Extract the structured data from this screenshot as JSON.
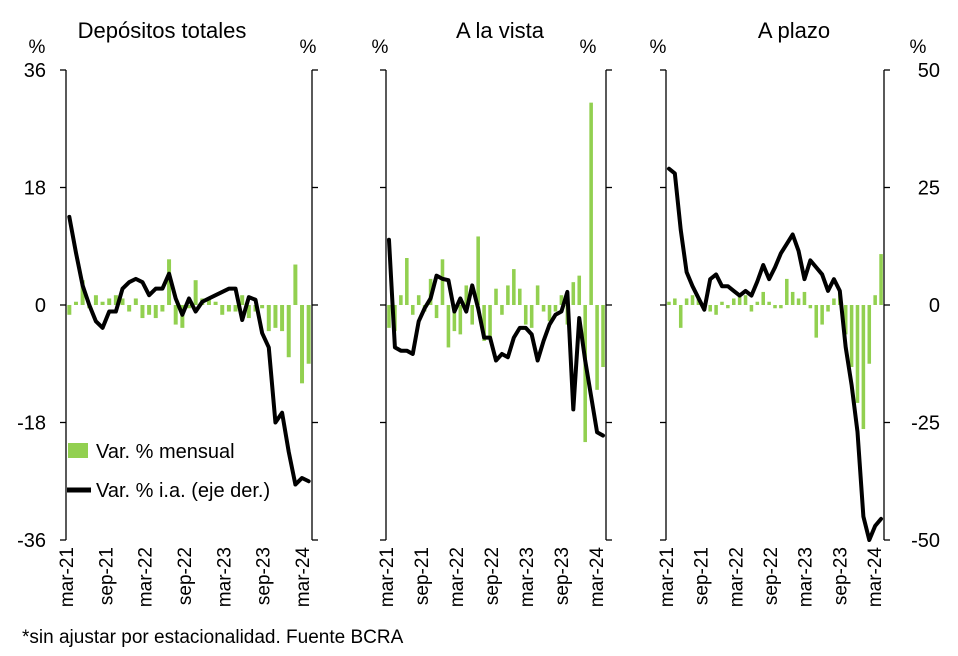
{
  "footnote": "*sin ajustar por estacionalidad. Fuente BCRA",
  "colors": {
    "bar": "#92D050",
    "line": "#000000",
    "axis": "#000000"
  },
  "legend": {
    "bar_label": "Var. % mensual",
    "line_label": "Var. % i.a. (eje der.)"
  },
  "x_tick_labels": [
    "mar-21",
    "sep-21",
    "mar-22",
    "sep-22",
    "mar-23",
    "sep-23",
    "mar-24"
  ],
  "chart_data": [
    {
      "type": "bar+line",
      "title": "Depósitos totales",
      "left_unit": "%",
      "right_unit": "%",
      "left_axis": {
        "range": [
          -36,
          36
        ],
        "ticks": [
          "36",
          "18",
          "0",
          "-18",
          "-36"
        ],
        "tick_values": [
          36,
          18,
          0,
          -18,
          -36
        ]
      },
      "right_axis": {
        "range": [
          -36,
          36
        ],
        "ticks": [],
        "tick_values": []
      },
      "x": [
        "mar-21",
        "abr-21",
        "may-21",
        "jun-21",
        "jul-21",
        "ago-21",
        "sep-21",
        "oct-21",
        "nov-21",
        "dic-21",
        "ene-22",
        "feb-22",
        "mar-22",
        "abr-22",
        "may-22",
        "jun-22",
        "jul-22",
        "ago-22",
        "sep-22",
        "oct-22",
        "nov-22",
        "dic-22",
        "ene-23",
        "feb-23",
        "mar-23",
        "abr-23",
        "may-23",
        "jun-23",
        "jul-23",
        "ago-23",
        "sep-23",
        "oct-23",
        "nov-23",
        "dic-23",
        "ene-24",
        "feb-24",
        "mar-24"
      ],
      "series": [
        {
          "name": "Var. % mensual",
          "kind": "bar",
          "axis": "left",
          "values": [
            -1.5,
            0.5,
            3.8,
            -0.5,
            1.5,
            0.5,
            1,
            1.5,
            1,
            -1,
            1,
            -2,
            -1.5,
            -2,
            -1,
            7,
            -3,
            -3.5,
            -0.5,
            3.8,
            1,
            1,
            0.5,
            -1.5,
            -1,
            -1,
            1.5,
            -2,
            -1,
            -0.5,
            -4,
            -3.5,
            -4,
            -8,
            6.2,
            -12,
            -9
          ]
        },
        {
          "name": "Var. % i.a. (eje der.)",
          "kind": "line",
          "axis": "right",
          "values": [
            13.5,
            8,
            3,
            0,
            -2.5,
            -3.5,
            -1,
            -1,
            2.5,
            3.5,
            4,
            3.5,
            1.5,
            2.5,
            2.5,
            4.8,
            1,
            -1.5,
            1,
            -1,
            0.5,
            1,
            1.5,
            2,
            2.5,
            2.5,
            -2.3,
            1.2,
            0.8,
            -4.3,
            -6.5,
            -18,
            -16.5,
            -22.5,
            -27.5,
            -26.5,
            -27
          ]
        }
      ]
    },
    {
      "type": "bar+line",
      "title": "A la vista",
      "left_unit": "%",
      "right_unit": "%",
      "left_axis": {
        "range": [
          -36,
          36
        ],
        "ticks": [],
        "tick_values": []
      },
      "right_axis": {
        "range": [
          -36,
          36
        ],
        "ticks": [],
        "tick_values": []
      },
      "x": [
        "mar-21",
        "abr-21",
        "may-21",
        "jun-21",
        "jul-21",
        "ago-21",
        "sep-21",
        "oct-21",
        "nov-21",
        "dic-21",
        "ene-22",
        "feb-22",
        "mar-22",
        "abr-22",
        "may-22",
        "jun-22",
        "jul-22",
        "ago-22",
        "sep-22",
        "oct-22",
        "nov-22",
        "dic-22",
        "ene-23",
        "feb-23",
        "mar-23",
        "abr-23",
        "may-23",
        "jun-23",
        "jul-23",
        "ago-23",
        "sep-23",
        "oct-23",
        "nov-23",
        "dic-23",
        "ene-24",
        "feb-24",
        "mar-24"
      ],
      "series": [
        {
          "name": "Var. % mensual",
          "kind": "bar",
          "axis": "left",
          "values": [
            -3.5,
            -4,
            1.5,
            7.2,
            -1.5,
            1.5,
            -1,
            4,
            -2,
            7,
            -6.5,
            -4,
            -4.5,
            3,
            -3,
            10.5,
            -5.5,
            -5,
            2.5,
            -1.5,
            3,
            5.5,
            2.5,
            -3,
            -3.5,
            3,
            -1,
            -2.5,
            -1,
            1.5,
            -3,
            3.5,
            4.5,
            -21,
            31,
            -13,
            -9.5
          ]
        },
        {
          "name": "Var. % i.a. (eje der.)",
          "kind": "line",
          "axis": "right",
          "values": [
            10,
            -6.5,
            -7,
            -7,
            -7.5,
            -2.5,
            -0.5,
            1,
            4.5,
            4,
            3.8,
            -1,
            1,
            -1,
            3,
            -0.5,
            -5,
            -5,
            -8.5,
            -7.5,
            -8,
            -5,
            -3.5,
            -3.5,
            -4.5,
            -8.5,
            -5.5,
            -3,
            -1.5,
            -1,
            2,
            -16,
            -2,
            -8.5,
            -14,
            -19.5,
            -20
          ]
        }
      ]
    },
    {
      "type": "bar+line",
      "title": "A plazo",
      "left_unit": "%",
      "right_unit": "%",
      "left_axis": {
        "range": [
          -36,
          36
        ],
        "ticks": [],
        "tick_values": []
      },
      "right_axis": {
        "range": [
          -50,
          50
        ],
        "ticks": [
          "50",
          "25",
          "0",
          "-25",
          "-50"
        ],
        "tick_values": [
          50,
          25,
          0,
          -25,
          -50
        ]
      },
      "x": [
        "mar-21",
        "abr-21",
        "may-21",
        "jun-21",
        "jul-21",
        "ago-21",
        "sep-21",
        "oct-21",
        "nov-21",
        "dic-21",
        "ene-22",
        "feb-22",
        "mar-22",
        "abr-22",
        "may-22",
        "jun-22",
        "jul-22",
        "ago-22",
        "sep-22",
        "oct-22",
        "nov-22",
        "dic-22",
        "ene-23",
        "feb-23",
        "mar-23",
        "abr-23",
        "may-23",
        "jun-23",
        "jul-23",
        "ago-23",
        "sep-23",
        "oct-23",
        "nov-23",
        "dic-23",
        "ene-24",
        "feb-24",
        "mar-24"
      ],
      "series": [
        {
          "name": "Var. % mensual",
          "kind": "bar",
          "axis": "left",
          "values": [
            0.5,
            1,
            -3.5,
            1,
            1.5,
            1,
            0,
            -1,
            -1.5,
            0.5,
            -0.5,
            1,
            1.5,
            1.5,
            -1,
            0.5,
            2,
            0.5,
            -0.5,
            -0.5,
            4,
            2,
            1,
            2,
            -0.5,
            -5,
            -3,
            -1,
            1,
            2,
            -4.5,
            -9.5,
            -15,
            -19,
            -9,
            1.5,
            7.8
          ]
        },
        {
          "name": "Var. % i.a. (eje der.)",
          "kind": "line",
          "axis": "right",
          "values": [
            29,
            28,
            16,
            7,
            4,
            1.5,
            -1,
            5.5,
            6.5,
            4,
            4,
            3,
            2,
            3,
            2,
            5,
            8.5,
            5.5,
            8,
            11,
            13,
            15,
            11.5,
            5.5,
            9.5,
            8,
            6.5,
            3,
            5.5,
            3,
            -9,
            -17,
            -27,
            -45,
            -50,
            -47,
            -45.5
          ]
        }
      ]
    }
  ]
}
